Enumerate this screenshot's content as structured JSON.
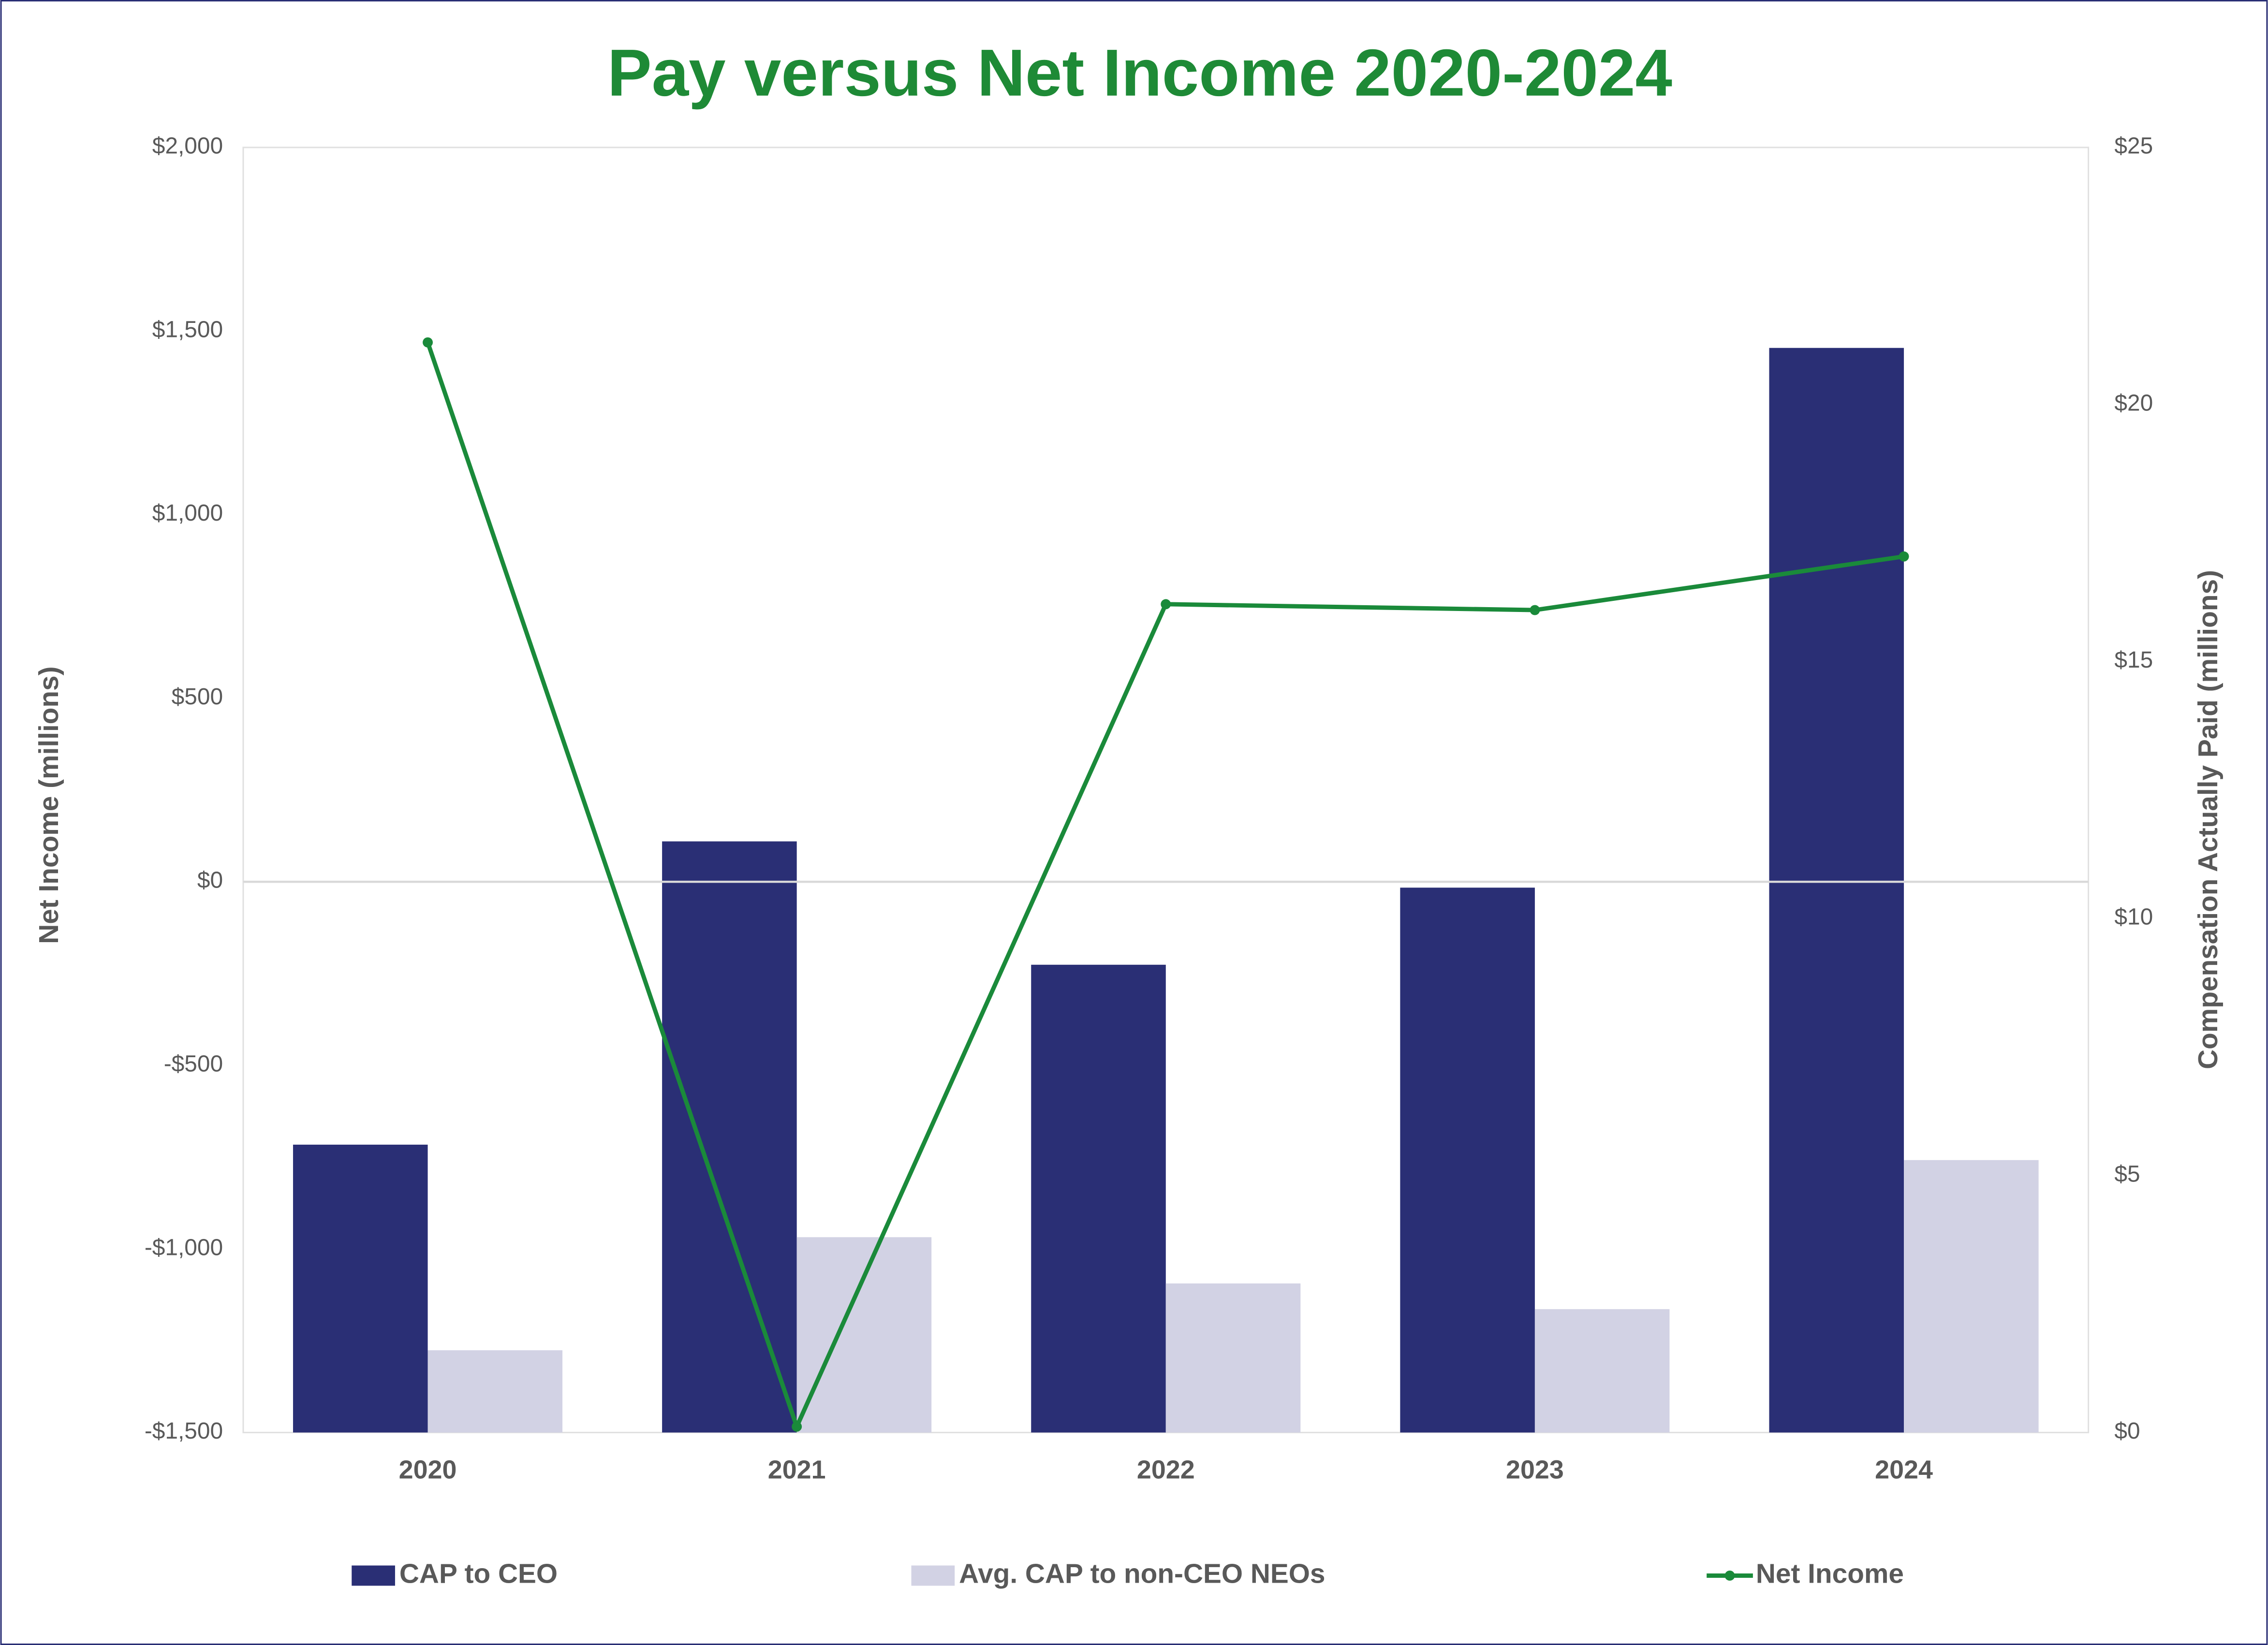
{
  "chart_data": {
    "type": "bar",
    "title": "Pay versus Net Income 2020-2024",
    "ylabel": "Net Income (millions)",
    "y2label": "Compensation Actually Paid (millions)",
    "categories": [
      "2020",
      "2021",
      "2022",
      "2023",
      "2024"
    ],
    "series": [
      {
        "name": "CAP to CEO",
        "type": "bar",
        "axis": "y2",
        "color": "#2a2f75",
        "values": [
          5.6,
          11.5,
          9.1,
          10.6,
          21.1
        ]
      },
      {
        "name": "Avg. CAP to non-CEO NEOs",
        "type": "bar",
        "axis": "y2",
        "color": "#d2d2e4",
        "values": [
          1.6,
          3.8,
          2.9,
          2.4,
          5.3
        ]
      },
      {
        "name": "Net Income",
        "type": "line",
        "color": "#1a8a3a",
        "values": [
          1469,
          -1484,
          756,
          740,
          886
        ]
      }
    ],
    "ylim": [
      -1500,
      2000
    ],
    "yticks": [
      {
        "value": -1500,
        "label": "-$1,500"
      },
      {
        "value": -1000,
        "label": "-$1,000"
      },
      {
        "value": -500,
        "label": "-$500"
      },
      {
        "value": 0,
        "label": "$0"
      },
      {
        "value": 500,
        "label": "$500"
      },
      {
        "value": 1000,
        "label": "$1,000"
      },
      {
        "value": 1500,
        "label": "$1,500"
      },
      {
        "value": 2000,
        "label": "$2,000"
      }
    ],
    "y2lim": [
      0,
      25
    ],
    "y2ticks": [
      {
        "value": 0,
        "label": "$0"
      },
      {
        "value": 5,
        "label": "$5"
      },
      {
        "value": 10,
        "label": "$10"
      },
      {
        "value": 15,
        "label": "$15"
      },
      {
        "value": 20,
        "label": "$20"
      },
      {
        "value": 25,
        "label": "$25"
      }
    ],
    "zero_line": true,
    "legend": "bottom"
  }
}
